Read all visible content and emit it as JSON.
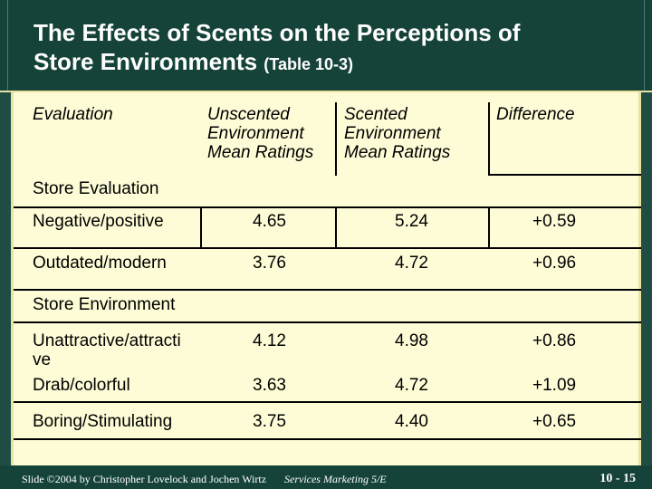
{
  "slide": {
    "title_main": "The Effects of Scents on the Perceptions of",
    "title_line2": "Store Environments",
    "title_sub": "(Table 10-3)"
  },
  "table": {
    "headers": {
      "evaluation": "Evaluation",
      "unscented": [
        "Unscented",
        "Environment",
        "Mean Ratings"
      ],
      "scented": [
        "Scented",
        "Environment",
        "Mean Ratings"
      ],
      "difference": "Difference"
    },
    "section1": "Store Evaluation",
    "section2": "Store Environment",
    "rows": [
      {
        "label": "Negative/positive",
        "unscented": "4.65",
        "scented": "5.24",
        "diff": "+0.59"
      },
      {
        "label": "Outdated/modern",
        "unscented": "3.76",
        "scented": "4.72",
        "diff": "+0.96"
      },
      {
        "label": "Unattractive/attracti",
        "label2": "ve",
        "unscented": "4.12",
        "scented": "4.98",
        "diff": "+0.86"
      },
      {
        "label": "Drab/colorful",
        "unscented": "3.63",
        "scented": "4.72",
        "diff": "+1.09"
      },
      {
        "label": "Boring/Stimulating",
        "unscented": "3.75",
        "scented": "4.40",
        "diff": "+0.65"
      }
    ]
  },
  "footer": {
    "credit": "Slide ©2004 by Christopher Lovelock and Jochen Wirtz",
    "course": "Services Marketing 5/E",
    "page": "10 - 15"
  }
}
